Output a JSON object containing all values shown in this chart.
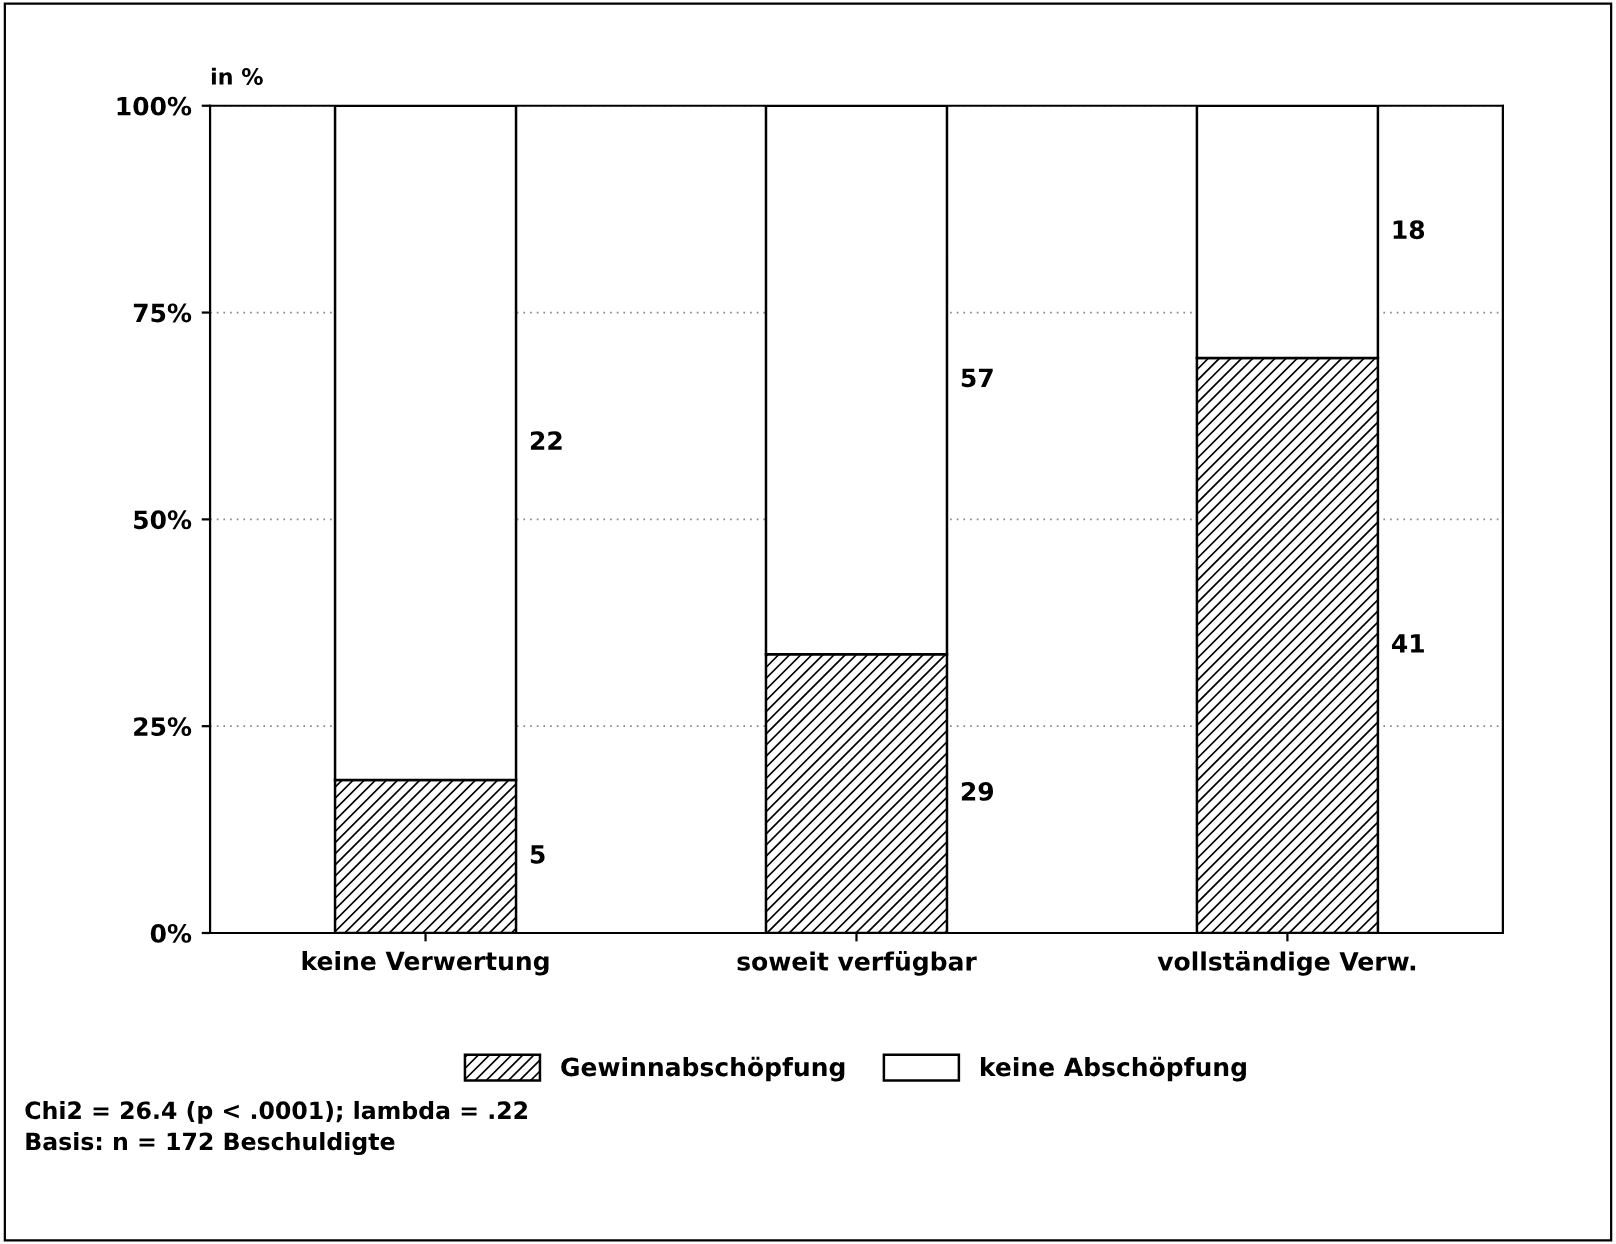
{
  "chart_data": {
    "type": "bar",
    "stacked": true,
    "ylabel": "in %",
    "categories": [
      "keine Verwertung",
      "soweit verfügbar",
      "vollständige Verw."
    ],
    "series": [
      {
        "name": "Gewinnabschöpfung",
        "color": "#000000",
        "values": [
          18.5,
          33.7,
          69.5
        ]
      },
      {
        "name": "keine Abschöpfung",
        "color": "#ffffff",
        "values": [
          81.5,
          66.3,
          30.5
        ]
      }
    ],
    "ylim": [
      0,
      100
    ],
    "yticks": [
      {
        "value": 0,
        "label": "0%"
      },
      {
        "value": 25,
        "label": "25%"
      },
      {
        "value": 50,
        "label": "50%"
      },
      {
        "value": 75,
        "label": "75%"
      },
      {
        "value": 100,
        "label": "100%"
      }
    ],
    "grid": "y",
    "legend": "bottom",
    "annotations": [
      "5",
      "29",
      "41",
      "22",
      "57",
      "18",
      "Chi2 = 26.4 (p < .0001); lambda = .22",
      "Basis: n = 172 Beschuldigte"
    ]
  }
}
